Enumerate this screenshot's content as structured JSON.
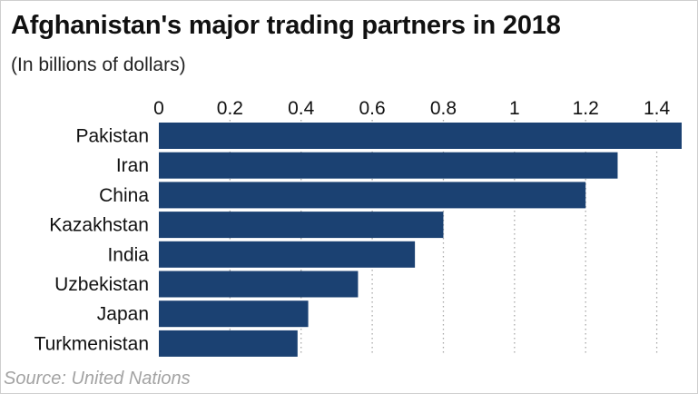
{
  "title": "Afghanistan's major trading partners in 2018",
  "subtitle": "(In billions of dollars)",
  "source": "Source: United Nations",
  "colors": {
    "bar": "#1b4172",
    "grid": "#a8a8a8",
    "text": "#111111",
    "source": "#a3a3a3"
  },
  "chart_data": {
    "type": "bar",
    "orientation": "horizontal",
    "title": "Afghanistan's major trading partners in 2018",
    "subtitle": "(In billions of dollars)",
    "categories": [
      "Pakistan",
      "Iran",
      "China",
      "Kazakhstan",
      "India",
      "Uzbekistan",
      "Japan",
      "Turkmenistan"
    ],
    "values": [
      1.47,
      1.29,
      1.2,
      0.8,
      0.72,
      0.56,
      0.42,
      0.39
    ],
    "xlim": [
      0,
      1.47
    ],
    "xticks": [
      0,
      0.2,
      0.4,
      0.6,
      0.8,
      1,
      1.2,
      1.4
    ],
    "xtick_labels": [
      "0",
      "0.2",
      "0.4",
      "0.6",
      "0.8",
      "1",
      "1.2",
      "1.4"
    ],
    "xaxis_position": "top",
    "grid": "vertical dotted",
    "legend": "none"
  }
}
